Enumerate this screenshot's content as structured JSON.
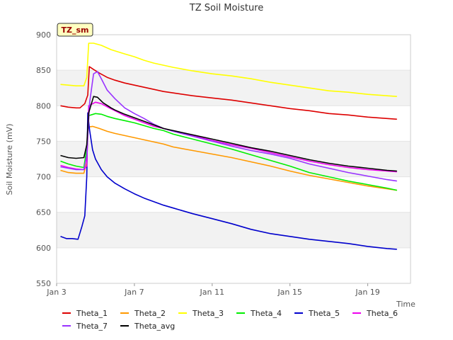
{
  "chart_data": {
    "type": "line",
    "title": "TZ Soil Moisture",
    "xlabel": "Time",
    "ylabel": "Soil Moisture (mV)",
    "tag": "TZ_sm",
    "ylim": [
      550,
      900
    ],
    "xlim": [
      0,
      18.2
    ],
    "x_unit": "days from Jan 3",
    "yticks": [
      550,
      600,
      650,
      700,
      750,
      800,
      850,
      900
    ],
    "xticks": [
      {
        "value": 0,
        "label": "Jan 3"
      },
      {
        "value": 4,
        "label": "Jan 7"
      },
      {
        "value": 8,
        "label": "Jan 11"
      },
      {
        "value": 12,
        "label": "Jan 15"
      },
      {
        "value": 16,
        "label": "Jan 19"
      }
    ],
    "grid_bands": true,
    "legend_position": "bottom",
    "series": [
      {
        "name": "Theta_1",
        "color": "#dd0000",
        "points": [
          [
            0.2,
            800
          ],
          [
            0.6,
            798
          ],
          [
            1.0,
            797
          ],
          [
            1.2,
            797
          ],
          [
            1.45,
            803
          ],
          [
            1.6,
            815
          ],
          [
            1.68,
            855
          ],
          [
            1.9,
            851
          ],
          [
            2.2,
            846
          ],
          [
            2.6,
            840
          ],
          [
            3.0,
            836
          ],
          [
            3.5,
            832
          ],
          [
            4.0,
            829
          ],
          [
            4.5,
            826
          ],
          [
            5.0,
            823
          ],
          [
            5.5,
            820
          ],
          [
            6.0,
            818
          ],
          [
            7.0,
            814
          ],
          [
            8.0,
            811
          ],
          [
            9.0,
            808
          ],
          [
            10.0,
            804
          ],
          [
            11.0,
            800
          ],
          [
            12.0,
            796
          ],
          [
            13.0,
            793
          ],
          [
            14.0,
            789
          ],
          [
            15.0,
            787
          ],
          [
            16.0,
            784
          ],
          [
            17.0,
            782
          ],
          [
            17.5,
            781
          ]
        ]
      },
      {
        "name": "Theta_2",
        "color": "#ff9900",
        "points": [
          [
            0.2,
            709
          ],
          [
            0.6,
            706
          ],
          [
            1.0,
            705
          ],
          [
            1.4,
            705
          ],
          [
            1.55,
            720
          ],
          [
            1.62,
            770
          ],
          [
            1.85,
            771
          ],
          [
            2.2,
            768
          ],
          [
            2.6,
            764
          ],
          [
            3.0,
            761
          ],
          [
            3.5,
            758
          ],
          [
            4.0,
            755
          ],
          [
            4.5,
            752
          ],
          [
            5.0,
            749
          ],
          [
            5.5,
            746
          ],
          [
            6.0,
            742
          ],
          [
            7.0,
            737
          ],
          [
            8.0,
            732
          ],
          [
            9.0,
            727
          ],
          [
            10.0,
            721
          ],
          [
            11.0,
            715
          ],
          [
            12.0,
            708
          ],
          [
            13.0,
            702
          ],
          [
            14.0,
            697
          ],
          [
            15.0,
            692
          ],
          [
            16.0,
            687
          ],
          [
            17.0,
            683
          ],
          [
            17.5,
            681
          ]
        ]
      },
      {
        "name": "Theta_3",
        "color": "#ffff00",
        "points": [
          [
            0.2,
            830
          ],
          [
            0.6,
            829
          ],
          [
            1.0,
            828
          ],
          [
            1.4,
            828
          ],
          [
            1.55,
            840
          ],
          [
            1.65,
            888
          ],
          [
            1.9,
            888
          ],
          [
            2.3,
            885
          ],
          [
            2.8,
            879
          ],
          [
            3.5,
            873
          ],
          [
            4.0,
            869
          ],
          [
            4.5,
            864
          ],
          [
            5.0,
            860
          ],
          [
            5.5,
            857
          ],
          [
            6.0,
            854
          ],
          [
            7.0,
            849
          ],
          [
            8.0,
            845
          ],
          [
            9.0,
            842
          ],
          [
            10.0,
            838
          ],
          [
            11.0,
            833
          ],
          [
            12.0,
            829
          ],
          [
            13.0,
            825
          ],
          [
            14.0,
            821
          ],
          [
            15.0,
            819
          ],
          [
            16.0,
            816
          ],
          [
            17.0,
            814
          ],
          [
            17.5,
            813
          ]
        ]
      },
      {
        "name": "Theta_4",
        "color": "#00ee00",
        "points": [
          [
            0.2,
            722
          ],
          [
            0.6,
            718
          ],
          [
            1.0,
            715
          ],
          [
            1.4,
            713
          ],
          [
            1.55,
            740
          ],
          [
            1.65,
            786
          ],
          [
            2.0,
            789
          ],
          [
            2.3,
            788
          ],
          [
            2.6,
            785
          ],
          [
            3.0,
            782
          ],
          [
            3.5,
            779
          ],
          [
            4.0,
            776
          ],
          [
            4.5,
            772
          ],
          [
            5.0,
            768
          ],
          [
            5.5,
            765
          ],
          [
            6.0,
            760
          ],
          [
            7.0,
            753
          ],
          [
            8.0,
            746
          ],
          [
            9.0,
            739
          ],
          [
            10.0,
            731
          ],
          [
            11.0,
            723
          ],
          [
            12.0,
            715
          ],
          [
            13.0,
            706
          ],
          [
            14.0,
            700
          ],
          [
            15.0,
            694
          ],
          [
            16.0,
            689
          ],
          [
            17.0,
            684
          ],
          [
            17.5,
            681
          ]
        ]
      },
      {
        "name": "Theta_5",
        "color": "#0000cc",
        "points": [
          [
            0.2,
            616
          ],
          [
            0.5,
            613
          ],
          [
            0.8,
            613
          ],
          [
            1.1,
            612
          ],
          [
            1.3,
            630
          ],
          [
            1.45,
            645
          ],
          [
            1.55,
            700
          ],
          [
            1.6,
            790
          ],
          [
            1.7,
            765
          ],
          [
            1.85,
            738
          ],
          [
            2.0,
            725
          ],
          [
            2.3,
            710
          ],
          [
            2.6,
            700
          ],
          [
            3.0,
            691
          ],
          [
            3.5,
            683
          ],
          [
            4.0,
            676
          ],
          [
            4.5,
            670
          ],
          [
            5.0,
            665
          ],
          [
            5.5,
            660
          ],
          [
            6.0,
            656
          ],
          [
            7.0,
            648
          ],
          [
            8.0,
            641
          ],
          [
            9.0,
            634
          ],
          [
            10.0,
            626
          ],
          [
            11.0,
            620
          ],
          [
            12.0,
            616
          ],
          [
            13.0,
            612
          ],
          [
            14.0,
            609
          ],
          [
            15.0,
            606
          ],
          [
            16.0,
            602
          ],
          [
            17.0,
            599
          ],
          [
            17.5,
            598
          ]
        ]
      },
      {
        "name": "Theta_6",
        "color": "#ee00ee",
        "points": [
          [
            0.2,
            716
          ],
          [
            0.6,
            713
          ],
          [
            1.0,
            711
          ],
          [
            1.4,
            710
          ],
          [
            1.55,
            715
          ],
          [
            1.65,
            800
          ],
          [
            2.0,
            805
          ],
          [
            2.3,
            803
          ],
          [
            2.7,
            797
          ],
          [
            3.0,
            793
          ],
          [
            3.5,
            786
          ],
          [
            4.0,
            781
          ],
          [
            4.5,
            776
          ],
          [
            5.0,
            771
          ],
          [
            5.5,
            768
          ],
          [
            6.0,
            764
          ],
          [
            7.0,
            758
          ],
          [
            8.0,
            751
          ],
          [
            9.0,
            745
          ],
          [
            10.0,
            740
          ],
          [
            11.0,
            734
          ],
          [
            12.0,
            728
          ],
          [
            13.0,
            722
          ],
          [
            14.0,
            717
          ],
          [
            15.0,
            713
          ],
          [
            16.0,
            710
          ],
          [
            17.0,
            708
          ],
          [
            17.5,
            707
          ]
        ]
      },
      {
        "name": "Theta_7",
        "color": "#9933ff",
        "points": [
          [
            0.2,
            714
          ],
          [
            0.6,
            712
          ],
          [
            1.0,
            710
          ],
          [
            1.4,
            710
          ],
          [
            1.55,
            730
          ],
          [
            1.7,
            805
          ],
          [
            1.9,
            845
          ],
          [
            2.1,
            848
          ],
          [
            2.3,
            838
          ],
          [
            2.6,
            822
          ],
          [
            3.0,
            810
          ],
          [
            3.5,
            797
          ],
          [
            4.0,
            789
          ],
          [
            4.5,
            782
          ],
          [
            5.0,
            774
          ],
          [
            5.5,
            768
          ],
          [
            6.0,
            764
          ],
          [
            7.0,
            757
          ],
          [
            8.0,
            750
          ],
          [
            9.0,
            743
          ],
          [
            10.0,
            737
          ],
          [
            11.0,
            732
          ],
          [
            12.0,
            726
          ],
          [
            13.0,
            718
          ],
          [
            14.0,
            712
          ],
          [
            15.0,
            706
          ],
          [
            16.0,
            701
          ],
          [
            17.0,
            696
          ],
          [
            17.5,
            694
          ]
        ]
      },
      {
        "name": "Theta_avg",
        "color": "#000000",
        "points": [
          [
            0.2,
            730
          ],
          [
            0.6,
            727
          ],
          [
            1.0,
            726
          ],
          [
            1.4,
            727
          ],
          [
            1.55,
            745
          ],
          [
            1.65,
            790
          ],
          [
            1.9,
            813
          ],
          [
            2.1,
            812
          ],
          [
            2.4,
            804
          ],
          [
            2.8,
            797
          ],
          [
            3.0,
            794
          ],
          [
            3.5,
            788
          ],
          [
            4.0,
            783
          ],
          [
            4.5,
            778
          ],
          [
            5.0,
            773
          ],
          [
            5.5,
            768
          ],
          [
            6.0,
            765
          ],
          [
            7.0,
            759
          ],
          [
            8.0,
            753
          ],
          [
            9.0,
            747
          ],
          [
            10.0,
            741
          ],
          [
            11.0,
            736
          ],
          [
            12.0,
            730
          ],
          [
            13.0,
            724
          ],
          [
            14.0,
            719
          ],
          [
            15.0,
            715
          ],
          [
            16.0,
            712
          ],
          [
            17.0,
            709
          ],
          [
            17.5,
            708
          ]
        ]
      }
    ]
  }
}
